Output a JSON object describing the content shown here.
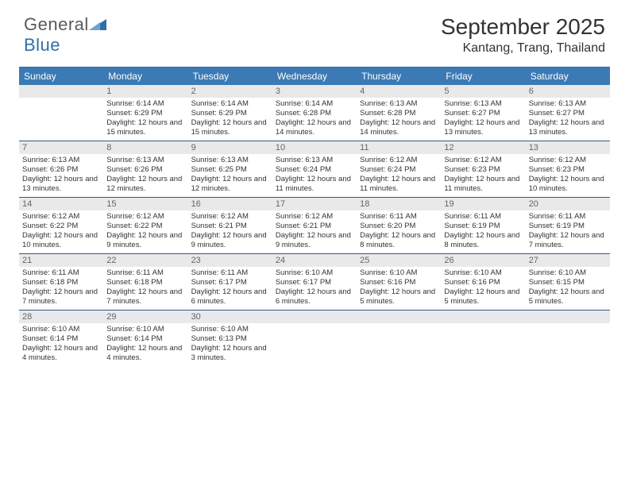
{
  "brand": {
    "general": "General",
    "blue": "Blue"
  },
  "title": "September 2025",
  "location": "Kantang, Trang, Thailand",
  "colors": {
    "header_bg": "#3b7ab5",
    "band_bg": "#e9e9e9",
    "border": "#2d5a8a",
    "text": "#333333"
  },
  "days_of_week": [
    "Sunday",
    "Monday",
    "Tuesday",
    "Wednesday",
    "Thursday",
    "Friday",
    "Saturday"
  ],
  "weeks": [
    [
      {
        "n": "",
        "sr": "",
        "ss": "",
        "dl": ""
      },
      {
        "n": "1",
        "sr": "Sunrise: 6:14 AM",
        "ss": "Sunset: 6:29 PM",
        "dl": "Daylight: 12 hours and 15 minutes."
      },
      {
        "n": "2",
        "sr": "Sunrise: 6:14 AM",
        "ss": "Sunset: 6:29 PM",
        "dl": "Daylight: 12 hours and 15 minutes."
      },
      {
        "n": "3",
        "sr": "Sunrise: 6:14 AM",
        "ss": "Sunset: 6:28 PM",
        "dl": "Daylight: 12 hours and 14 minutes."
      },
      {
        "n": "4",
        "sr": "Sunrise: 6:13 AM",
        "ss": "Sunset: 6:28 PM",
        "dl": "Daylight: 12 hours and 14 minutes."
      },
      {
        "n": "5",
        "sr": "Sunrise: 6:13 AM",
        "ss": "Sunset: 6:27 PM",
        "dl": "Daylight: 12 hours and 13 minutes."
      },
      {
        "n": "6",
        "sr": "Sunrise: 6:13 AM",
        "ss": "Sunset: 6:27 PM",
        "dl": "Daylight: 12 hours and 13 minutes."
      }
    ],
    [
      {
        "n": "7",
        "sr": "Sunrise: 6:13 AM",
        "ss": "Sunset: 6:26 PM",
        "dl": "Daylight: 12 hours and 13 minutes."
      },
      {
        "n": "8",
        "sr": "Sunrise: 6:13 AM",
        "ss": "Sunset: 6:26 PM",
        "dl": "Daylight: 12 hours and 12 minutes."
      },
      {
        "n": "9",
        "sr": "Sunrise: 6:13 AM",
        "ss": "Sunset: 6:25 PM",
        "dl": "Daylight: 12 hours and 12 minutes."
      },
      {
        "n": "10",
        "sr": "Sunrise: 6:13 AM",
        "ss": "Sunset: 6:24 PM",
        "dl": "Daylight: 12 hours and 11 minutes."
      },
      {
        "n": "11",
        "sr": "Sunrise: 6:12 AM",
        "ss": "Sunset: 6:24 PM",
        "dl": "Daylight: 12 hours and 11 minutes."
      },
      {
        "n": "12",
        "sr": "Sunrise: 6:12 AM",
        "ss": "Sunset: 6:23 PM",
        "dl": "Daylight: 12 hours and 11 minutes."
      },
      {
        "n": "13",
        "sr": "Sunrise: 6:12 AM",
        "ss": "Sunset: 6:23 PM",
        "dl": "Daylight: 12 hours and 10 minutes."
      }
    ],
    [
      {
        "n": "14",
        "sr": "Sunrise: 6:12 AM",
        "ss": "Sunset: 6:22 PM",
        "dl": "Daylight: 12 hours and 10 minutes."
      },
      {
        "n": "15",
        "sr": "Sunrise: 6:12 AM",
        "ss": "Sunset: 6:22 PM",
        "dl": "Daylight: 12 hours and 9 minutes."
      },
      {
        "n": "16",
        "sr": "Sunrise: 6:12 AM",
        "ss": "Sunset: 6:21 PM",
        "dl": "Daylight: 12 hours and 9 minutes."
      },
      {
        "n": "17",
        "sr": "Sunrise: 6:12 AM",
        "ss": "Sunset: 6:21 PM",
        "dl": "Daylight: 12 hours and 9 minutes."
      },
      {
        "n": "18",
        "sr": "Sunrise: 6:11 AM",
        "ss": "Sunset: 6:20 PM",
        "dl": "Daylight: 12 hours and 8 minutes."
      },
      {
        "n": "19",
        "sr": "Sunrise: 6:11 AM",
        "ss": "Sunset: 6:19 PM",
        "dl": "Daylight: 12 hours and 8 minutes."
      },
      {
        "n": "20",
        "sr": "Sunrise: 6:11 AM",
        "ss": "Sunset: 6:19 PM",
        "dl": "Daylight: 12 hours and 7 minutes."
      }
    ],
    [
      {
        "n": "21",
        "sr": "Sunrise: 6:11 AM",
        "ss": "Sunset: 6:18 PM",
        "dl": "Daylight: 12 hours and 7 minutes."
      },
      {
        "n": "22",
        "sr": "Sunrise: 6:11 AM",
        "ss": "Sunset: 6:18 PM",
        "dl": "Daylight: 12 hours and 7 minutes."
      },
      {
        "n": "23",
        "sr": "Sunrise: 6:11 AM",
        "ss": "Sunset: 6:17 PM",
        "dl": "Daylight: 12 hours and 6 minutes."
      },
      {
        "n": "24",
        "sr": "Sunrise: 6:10 AM",
        "ss": "Sunset: 6:17 PM",
        "dl": "Daylight: 12 hours and 6 minutes."
      },
      {
        "n": "25",
        "sr": "Sunrise: 6:10 AM",
        "ss": "Sunset: 6:16 PM",
        "dl": "Daylight: 12 hours and 5 minutes."
      },
      {
        "n": "26",
        "sr": "Sunrise: 6:10 AM",
        "ss": "Sunset: 6:16 PM",
        "dl": "Daylight: 12 hours and 5 minutes."
      },
      {
        "n": "27",
        "sr": "Sunrise: 6:10 AM",
        "ss": "Sunset: 6:15 PM",
        "dl": "Daylight: 12 hours and 5 minutes."
      }
    ],
    [
      {
        "n": "28",
        "sr": "Sunrise: 6:10 AM",
        "ss": "Sunset: 6:14 PM",
        "dl": "Daylight: 12 hours and 4 minutes."
      },
      {
        "n": "29",
        "sr": "Sunrise: 6:10 AM",
        "ss": "Sunset: 6:14 PM",
        "dl": "Daylight: 12 hours and 4 minutes."
      },
      {
        "n": "30",
        "sr": "Sunrise: 6:10 AM",
        "ss": "Sunset: 6:13 PM",
        "dl": "Daylight: 12 hours and 3 minutes."
      },
      {
        "n": "",
        "sr": "",
        "ss": "",
        "dl": ""
      },
      {
        "n": "",
        "sr": "",
        "ss": "",
        "dl": ""
      },
      {
        "n": "",
        "sr": "",
        "ss": "",
        "dl": ""
      },
      {
        "n": "",
        "sr": "",
        "ss": "",
        "dl": ""
      }
    ]
  ]
}
